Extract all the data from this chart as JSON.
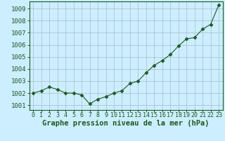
{
  "x": [
    0,
    1,
    2,
    3,
    4,
    5,
    6,
    7,
    8,
    9,
    10,
    11,
    12,
    13,
    14,
    15,
    16,
    17,
    18,
    19,
    20,
    21,
    22,
    23
  ],
  "y": [
    1002.0,
    1002.2,
    1002.5,
    1002.3,
    1002.0,
    1002.0,
    1001.85,
    1001.1,
    1001.5,
    1001.7,
    1002.0,
    1002.2,
    1002.8,
    1003.0,
    1003.7,
    1004.3,
    1004.7,
    1005.2,
    1005.9,
    1006.5,
    1006.6,
    1007.3,
    1007.7,
    1009.3
  ],
  "ylim": [
    1000.6,
    1009.6
  ],
  "yticks": [
    1001,
    1002,
    1003,
    1004,
    1005,
    1006,
    1007,
    1008,
    1009
  ],
  "xlim": [
    -0.5,
    23.5
  ],
  "xticks": [
    0,
    1,
    2,
    3,
    4,
    5,
    6,
    7,
    8,
    9,
    10,
    11,
    12,
    13,
    14,
    15,
    16,
    17,
    18,
    19,
    20,
    21,
    22,
    23
  ],
  "xlabel": "Graphe pression niveau de la mer (hPa)",
  "line_color": "#1a5c1a",
  "marker": "D",
  "marker_size": 2.5,
  "background_color": "#cceeff",
  "grid_color": "#aabbcc",
  "xlabel_fontsize": 7.5,
  "tick_fontsize": 6.0,
  "ytick_fontsize": 6.5
}
